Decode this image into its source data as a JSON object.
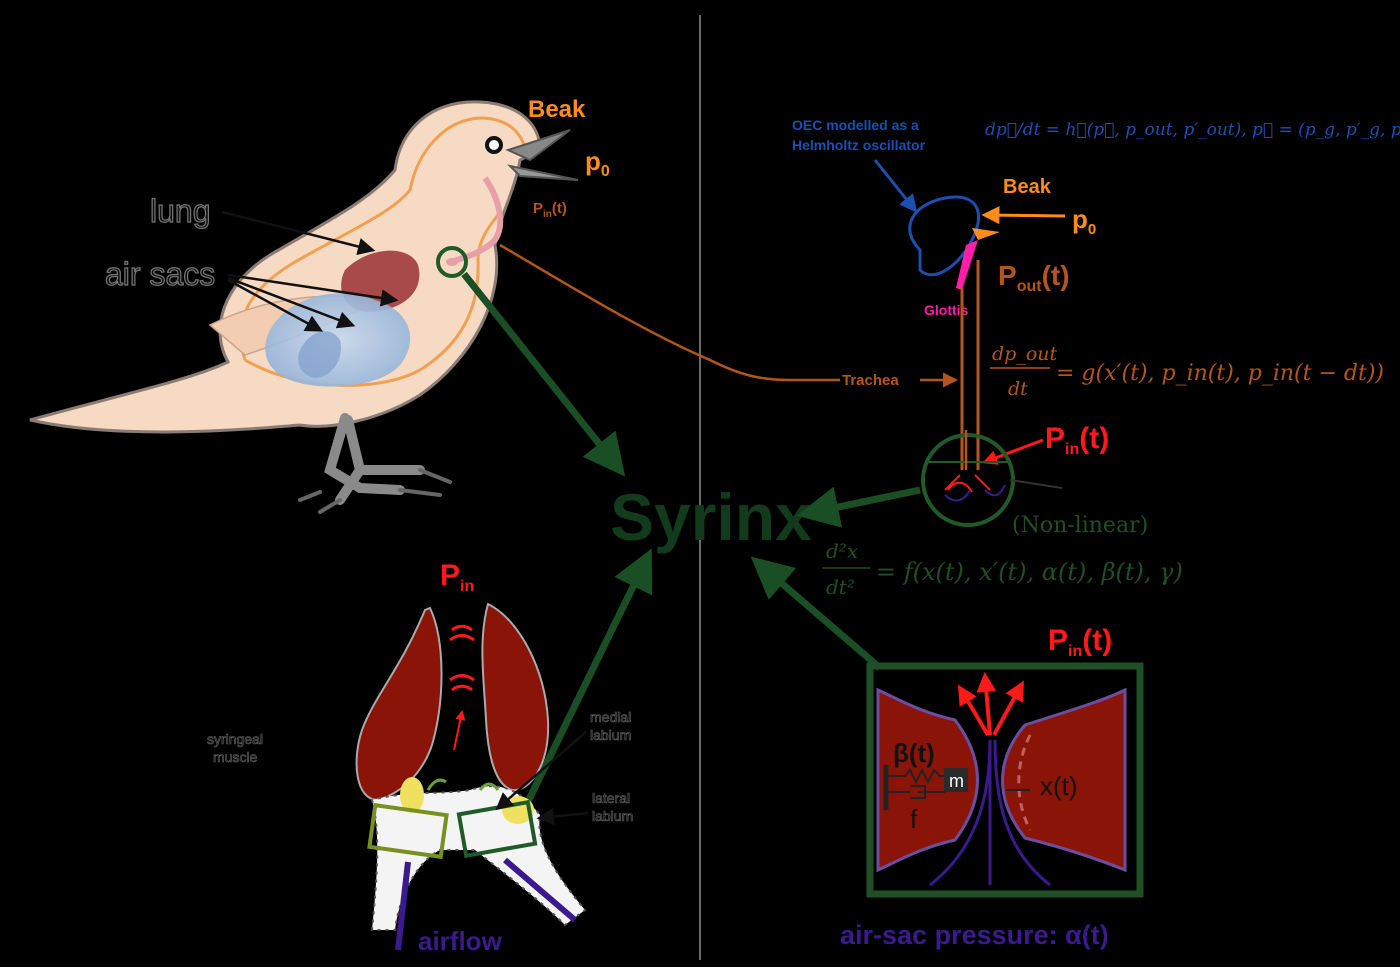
{
  "labels": {
    "beak": "Beak",
    "p0": "p",
    "p0_sub": "0",
    "pin_small": "P",
    "pin_small_sub": "in",
    "pin_small_t": "(t)",
    "lung": "lung",
    "air_sacs": "air sacs",
    "syrinx": "Syrinx",
    "obc_line1": "OEC modelled as a",
    "obc_line2": "Helmholtz oscillator",
    "beak_right": "Beak",
    "p0_right": "p",
    "p0_right_sub": "0",
    "psat": "P",
    "psat_sub": "out",
    "psat_t": "(t)",
    "glottis": "Glottis",
    "trachea": "Trachea",
    "pin_right": "P",
    "pin_right_sub": "in",
    "pin_right_t": "(t)",
    "nonlinear": "(Non-linear)",
    "pin_muscle": "P",
    "pin_muscle_sub": "in",
    "syringeal_line1": "syringeal",
    "syringeal_line2": "muscle",
    "medial_line1": "medial",
    "medial_line2": "labium",
    "lateral_line1": "lateral",
    "lateral_line2": "labium",
    "airflow": "airflow",
    "pin_box": "P",
    "pin_box_sub": "in",
    "pin_box_t": "(t)",
    "beta": "β(t)",
    "m": "m",
    "f": "f",
    "xt": "x(t)",
    "air_sac": "air-sac pressure: α(t)"
  },
  "equations": {
    "obc_eq": "dp⃗/dt = h⃗(p⃗, p_out, p′_out),   p⃗ = (p_g, p′_g, p_b)",
    "trachea_eq_lhs_num": "dp_out",
    "trachea_eq_lhs_den": "dt",
    "trachea_eq_rhs": "= g(x′(t), p_in(t), p_in(t − dt))",
    "syrinx_eq_lhs_num": "d²x",
    "syrinx_eq_lhs_den": "dt²",
    "syrinx_eq_rhs": "= f(x(t), x′(t), α(t), β(t), γ)"
  },
  "colors": {
    "background": "#000000",
    "orange": "#ff8c1a",
    "brown": "#b4561c",
    "red": "#ff2020",
    "dark_green": "#1f4f25",
    "arrow_green": "#1a5a2a",
    "olive": "#77901f",
    "blue": "#1c4fb0",
    "magenta": "#ff1ea8",
    "purple": "#3a1a8c",
    "muscle": "#8a1408",
    "bird_body": "#f7dac4",
    "bird_outline": "#8a7c74",
    "lung_fill": "#a94a4a",
    "airsac_fill": "#9ab8dc",
    "divider": "#6a6a6a"
  }
}
